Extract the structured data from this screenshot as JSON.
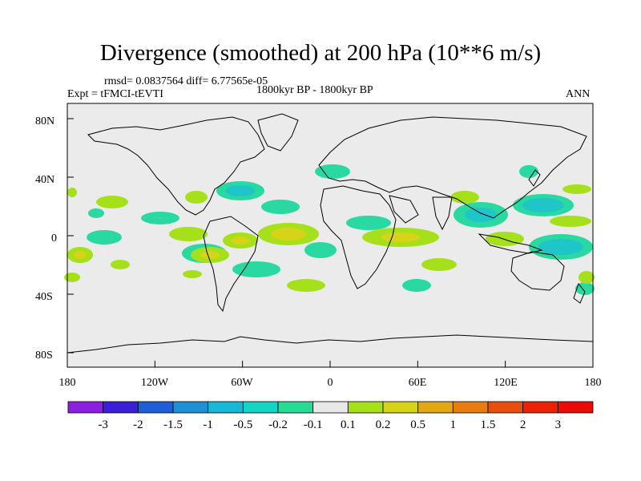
{
  "title": "Divergence (smoothed) at 200 hPa (10**6 m/s)",
  "stats": "rmsd= 0.0837564 diff= 6.77565e-05",
  "experiment": "Expt = tFMCI-tEVTI",
  "period": "1800kyr BP - 1800kyr BP",
  "season": "ANN",
  "y_ticks": [
    "80N",
    "40N",
    "0",
    "40S",
    "80S"
  ],
  "x_ticks": [
    "180",
    "120W",
    "60W",
    "0",
    "60E",
    "120E",
    "180"
  ],
  "colorbar": {
    "labels": [
      "-3",
      "-2",
      "-1.5",
      "-1",
      "-0.5",
      "-0.2",
      "-0.1",
      "0.1",
      "0.2",
      "0.5",
      "1",
      "1.5",
      "2",
      "3"
    ],
    "colors": [
      "#8f1fe0",
      "#3a1fd6",
      "#1f5fd6",
      "#1e90d8",
      "#18b8d8",
      "#16d4c4",
      "#26dc95",
      "#e8e8e8",
      "#a5e01a",
      "#d6d318",
      "#e2a814",
      "#e87c10",
      "#ea4e0c",
      "#ea2206",
      "#ea0a06"
    ]
  },
  "map_colors": {
    "background": "#ebebeb",
    "land_outline": "#000000"
  }
}
